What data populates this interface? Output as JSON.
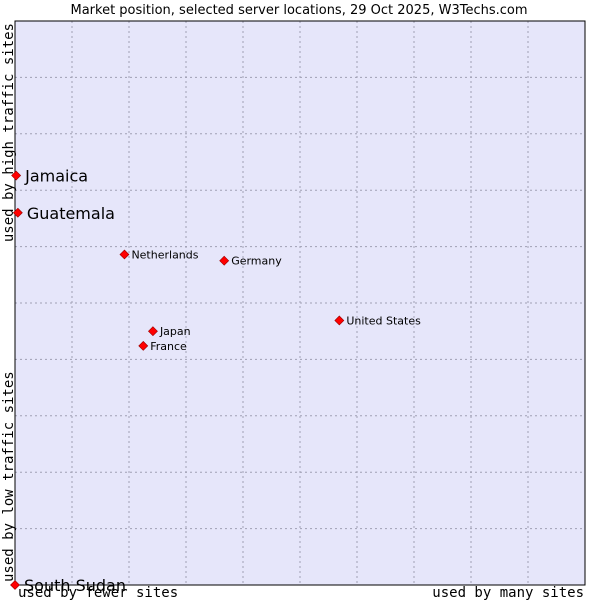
{
  "chart_data": {
    "type": "scatter",
    "title": "Market position, selected server locations, 29 Oct 2025, W3Techs.com",
    "xlabel_left": "used by fewer sites",
    "xlabel_right": "used by many sites",
    "ylabel_top": "used by high traffic sites",
    "ylabel_bottom": "used by low traffic sites",
    "xlim": [
      0,
      100
    ],
    "ylim": [
      0,
      100
    ],
    "grid": true,
    "points": [
      {
        "name": "Jamaica",
        "x": 0.2,
        "y": 72.6,
        "emphasis": true
      },
      {
        "name": "Guatemala",
        "x": 0.5,
        "y": 66.0,
        "emphasis": true
      },
      {
        "name": "Netherlands",
        "x": 19.2,
        "y": 58.6,
        "emphasis": false
      },
      {
        "name": "Germany",
        "x": 36.7,
        "y": 57.5,
        "emphasis": false
      },
      {
        "name": "United States",
        "x": 56.9,
        "y": 46.9,
        "emphasis": false
      },
      {
        "name": "Japan",
        "x": 24.2,
        "y": 45.0,
        "emphasis": false
      },
      {
        "name": "France",
        "x": 22.5,
        "y": 42.4,
        "emphasis": false
      },
      {
        "name": "South Sudan",
        "x": 0.0,
        "y": 0.0,
        "emphasis": true
      }
    ]
  },
  "colors": {
    "plot_background": "#e6e6fa",
    "grid": "#a0a0b4",
    "point": "#ff0000",
    "point_outline": "#990000"
  }
}
